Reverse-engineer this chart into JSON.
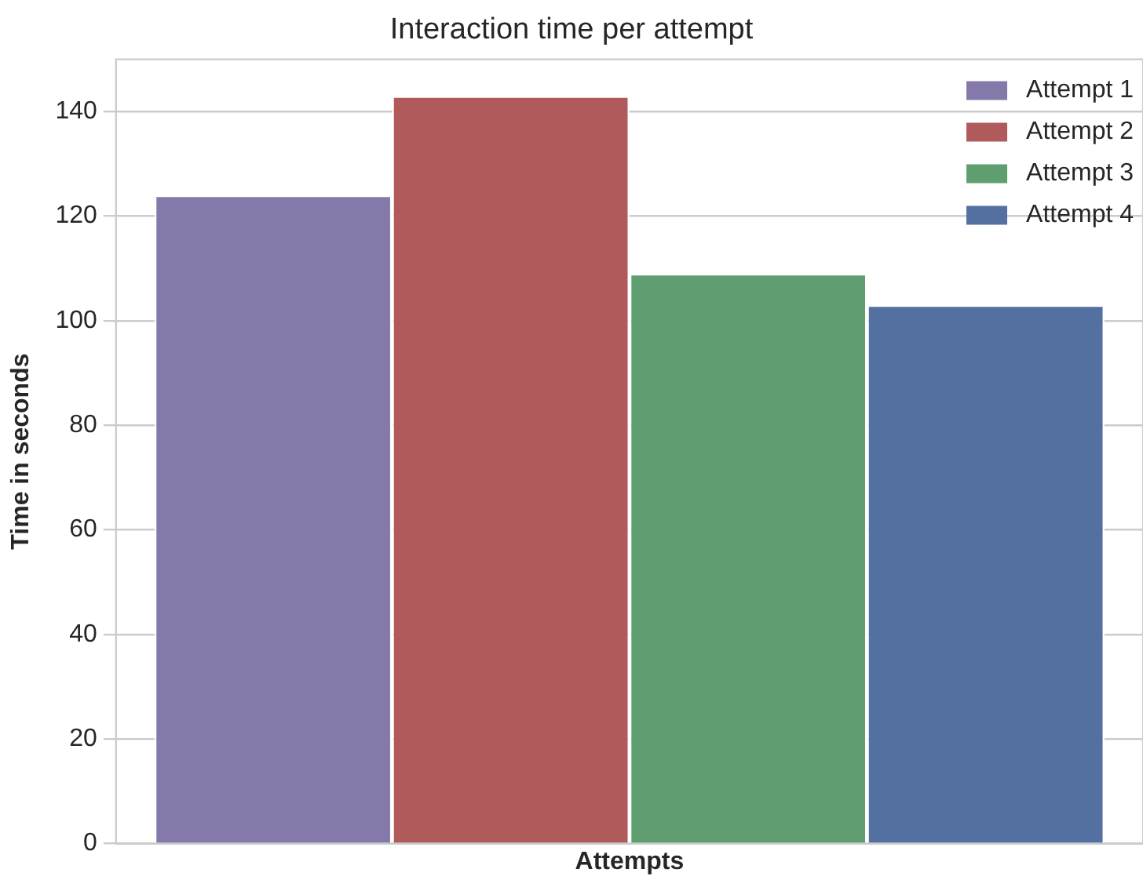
{
  "chart_data": {
    "type": "bar",
    "title": "Interaction time per attempt",
    "xlabel": "Attempts",
    "ylabel": "Time in seconds",
    "categories": [
      null
    ],
    "series": [
      {
        "name": "Attempt 1",
        "color": "#8579aa",
        "values": [
          124
        ]
      },
      {
        "name": "Attempt 2",
        "color": "#b05a5c",
        "values": [
          143
        ]
      },
      {
        "name": "Attempt 3",
        "color": "#5f9e6e",
        "values": [
          109
        ]
      },
      {
        "name": "Attempt 4",
        "color": "#5470a0",
        "values": [
          103
        ]
      }
    ],
    "ylim": [
      0,
      150
    ],
    "yticks": [
      0,
      20,
      40,
      60,
      80,
      100,
      120,
      140
    ],
    "grid": "y",
    "legend": "top right",
    "tick_labels": "y"
  }
}
